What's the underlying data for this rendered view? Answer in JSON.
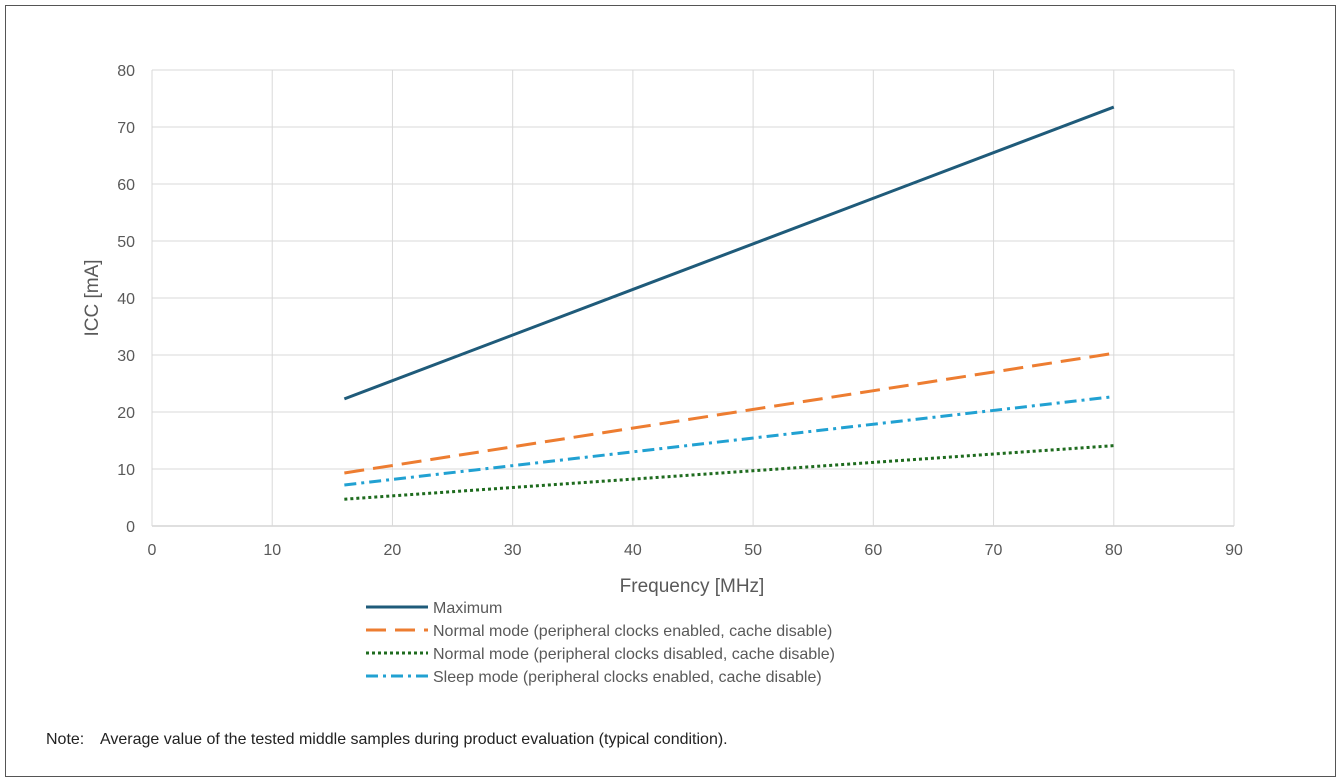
{
  "chart_data": {
    "type": "line",
    "xlabel": "Frequency [MHz]",
    "ylabel": "ICC [mA]",
    "xlim": [
      0,
      90
    ],
    "ylim": [
      0,
      80
    ],
    "xticks": [
      0,
      10,
      20,
      30,
      40,
      50,
      60,
      70,
      80,
      90
    ],
    "yticks": [
      0,
      10,
      20,
      30,
      40,
      50,
      60,
      70,
      80
    ],
    "grid": true,
    "legend_position": "bottom",
    "series": [
      {
        "name": "Maximum",
        "x": [
          16,
          80
        ],
        "y": [
          22.3,
          73.5
        ],
        "color": "#1f5b7a",
        "dash": "solid"
      },
      {
        "name": "Normal mode (peripheral clocks enabled, cache disable)",
        "x": [
          16,
          80
        ],
        "y": [
          9.3,
          30.3
        ],
        "color": "#ed7d31",
        "dash": "long-dash"
      },
      {
        "name": "Normal mode (peripheral clocks disabled, cache disable)",
        "x": [
          16,
          80
        ],
        "y": [
          4.7,
          14.1
        ],
        "color": "#1e6b1e",
        "dash": "dotted"
      },
      {
        "name": "Sleep mode (peripheral clocks enabled, cache disable)",
        "x": [
          16,
          80
        ],
        "y": [
          7.2,
          22.7
        ],
        "color": "#21a1d2",
        "dash": "dash-dot"
      }
    ]
  },
  "note": {
    "label": "Note:",
    "text": "Average value of the tested middle samples during product evaluation (typical condition)."
  }
}
